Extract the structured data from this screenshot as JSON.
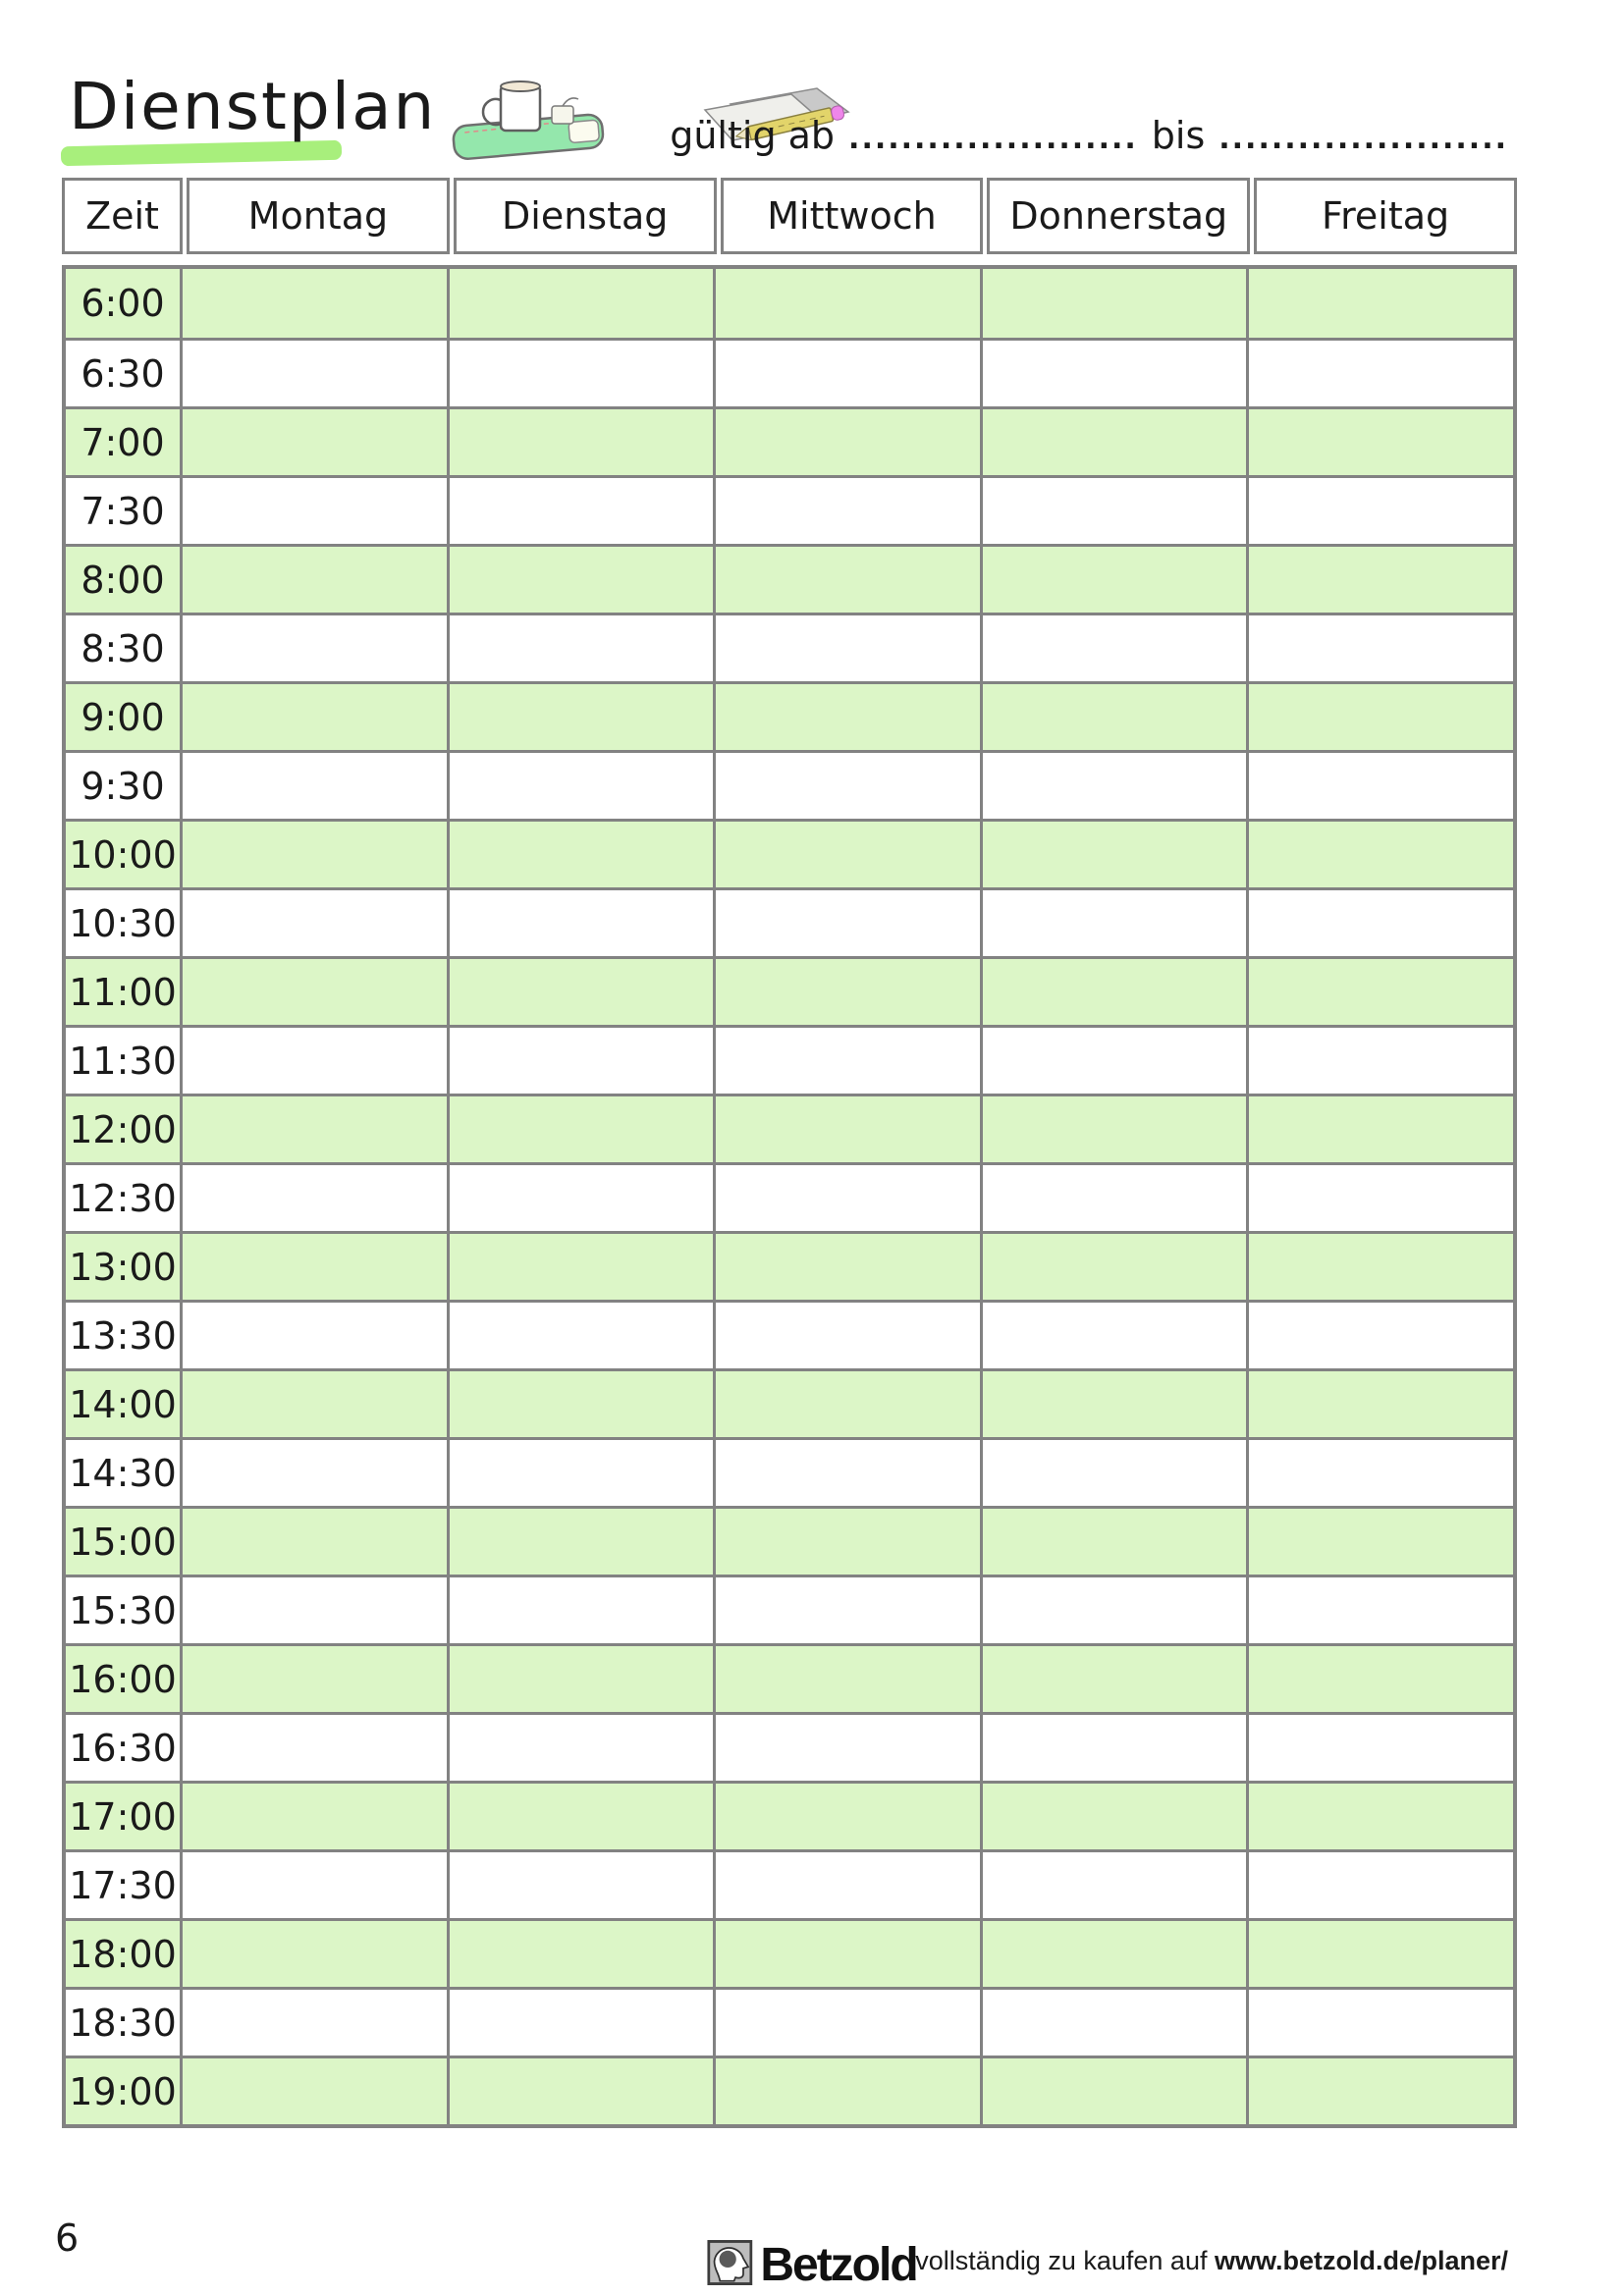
{
  "page": {
    "title": "Dienstplan",
    "page_number": "6"
  },
  "validity": {
    "prefix": "gültig ab",
    "blank1": "......................",
    "separator": "bis",
    "blank2": "......................"
  },
  "schedule": {
    "headers": [
      "Zeit",
      "Montag",
      "Dienstag",
      "Mittwoch",
      "Donnerstag",
      "Freitag"
    ],
    "times": [
      "6:00",
      "6:30",
      "7:00",
      "7:30",
      "8:00",
      "8:30",
      "9:00",
      "9:30",
      "10:00",
      "10:30",
      "11:00",
      "11:30",
      "12:00",
      "12:30",
      "13:00",
      "13:30",
      "14:00",
      "14:30",
      "15:00",
      "15:30",
      "16:00",
      "16:30",
      "17:00",
      "17:30",
      "18:00",
      "18:30",
      "19:00"
    ],
    "day_columns": 5
  },
  "footer": {
    "brand": "Betzold",
    "note_text": "vollständig zu kaufen auf ",
    "note_url": "www.betzold.de/planer/"
  },
  "colors": {
    "row_green": "#dcf6c7",
    "grid_gray": "#828282",
    "title_highlight": "#a8ef7c",
    "book_green": "#94e7ac",
    "pencil_yellow": "#e2d46a",
    "eraser_pink": "#ef86ea"
  },
  "icons": {
    "header_left": "notebook-mug-icon",
    "header_right": "papers-pencil-icon",
    "footer": "betzold-logo-icon"
  }
}
